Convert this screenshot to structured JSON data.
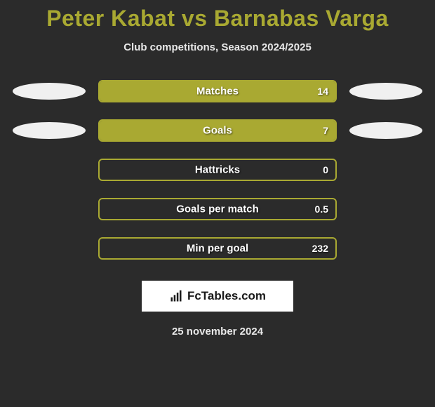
{
  "title": "Peter Kabat vs Barnabas Varga",
  "subtitle": "Club competitions, Season 2024/2025",
  "colors": {
    "background": "#2b2b2b",
    "accent": "#a9a932",
    "text_light": "#e8e8e8",
    "white": "#ffffff",
    "ellipse": "#f0f0f0"
  },
  "stats": [
    {
      "label": "Matches",
      "value": "14",
      "fill_pct": 100,
      "left_ellipse": true,
      "right_ellipse": true
    },
    {
      "label": "Goals",
      "value": "7",
      "fill_pct": 100,
      "left_ellipse": true,
      "right_ellipse": true
    },
    {
      "label": "Hattricks",
      "value": "0",
      "fill_pct": 0,
      "left_ellipse": false,
      "right_ellipse": false
    },
    {
      "label": "Goals per match",
      "value": "0.5",
      "fill_pct": 0,
      "left_ellipse": false,
      "right_ellipse": false
    },
    {
      "label": "Min per goal",
      "value": "232",
      "fill_pct": 0,
      "left_ellipse": false,
      "right_ellipse": false
    }
  ],
  "logo": {
    "text": "FcTables.com"
  },
  "date": "25 november 2024",
  "bar": {
    "track_width": 340,
    "track_height": 32,
    "border_radius": 6,
    "border_width": 2
  }
}
